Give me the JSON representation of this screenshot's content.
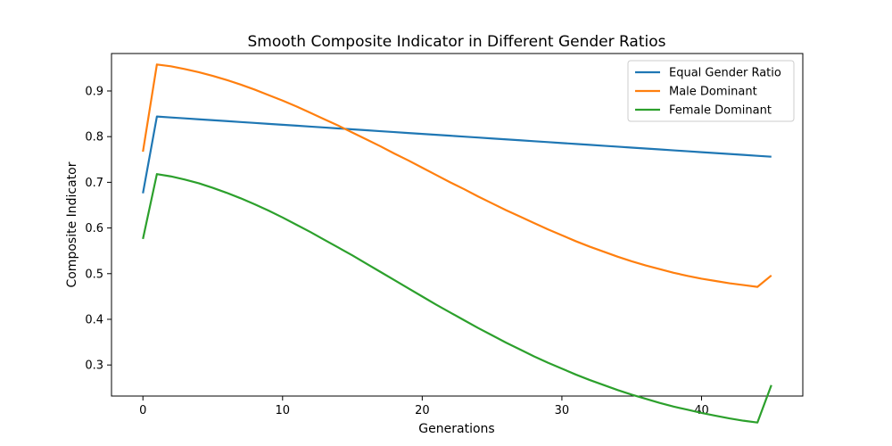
{
  "chart_data": {
    "type": "line",
    "title": "Smooth Composite Indicator in Different Gender Ratios",
    "xlabel": "Generations",
    "ylabel": "Composite Indicator",
    "xlim": [
      -2.25,
      47.25
    ],
    "ylim": [
      0.232,
      0.982
    ],
    "xticks": [
      0,
      10,
      20,
      30,
      40
    ],
    "yticks": [
      0.3,
      0.4,
      0.5,
      0.6,
      0.7,
      0.8,
      0.9
    ],
    "grid": false,
    "legend_position": "top-right",
    "x": [
      0,
      1,
      2,
      3,
      4,
      5,
      6,
      7,
      8,
      9,
      10,
      11,
      12,
      13,
      14,
      15,
      16,
      17,
      18,
      19,
      20,
      21,
      22,
      23,
      24,
      25,
      26,
      27,
      28,
      29,
      30,
      31,
      32,
      33,
      34,
      35,
      36,
      37,
      38,
      39,
      40,
      41,
      42,
      43,
      44,
      45
    ],
    "series": [
      {
        "name": "Equal Gender Ratio",
        "color": "#1f77b4",
        "values": [
          0.676,
          0.844,
          0.842,
          0.84,
          0.838,
          0.836,
          0.834,
          0.832,
          0.83,
          0.828,
          0.826,
          0.824,
          0.822,
          0.82,
          0.818,
          0.816,
          0.814,
          0.812,
          0.81,
          0.808,
          0.806,
          0.804,
          0.802,
          0.8,
          0.798,
          0.796,
          0.794,
          0.792,
          0.79,
          0.788,
          0.786,
          0.784,
          0.782,
          0.78,
          0.778,
          0.776,
          0.774,
          0.772,
          0.77,
          0.768,
          0.766,
          0.764,
          0.762,
          0.76,
          0.758,
          0.756
        ]
      },
      {
        "name": "Male Dominant",
        "color": "#ff7f0e",
        "values": [
          0.767,
          0.958,
          0.954,
          0.948,
          0.941,
          0.933,
          0.924,
          0.914,
          0.903,
          0.891,
          0.879,
          0.866,
          0.852,
          0.838,
          0.824,
          0.809,
          0.794,
          0.779,
          0.763,
          0.748,
          0.732,
          0.716,
          0.7,
          0.685,
          0.669,
          0.654,
          0.639,
          0.625,
          0.611,
          0.597,
          0.584,
          0.571,
          0.559,
          0.548,
          0.537,
          0.527,
          0.518,
          0.51,
          0.502,
          0.495,
          0.489,
          0.484,
          0.479,
          0.475,
          0.471,
          0.496
        ]
      },
      {
        "name": "Female Dominant",
        "color": "#2ca02c",
        "values": [
          0.576,
          0.718,
          0.713,
          0.706,
          0.698,
          0.688,
          0.677,
          0.665,
          0.652,
          0.638,
          0.623,
          0.607,
          0.591,
          0.574,
          0.557,
          0.54,
          0.522,
          0.504,
          0.486,
          0.468,
          0.45,
          0.432,
          0.415,
          0.398,
          0.381,
          0.365,
          0.349,
          0.334,
          0.319,
          0.305,
          0.292,
          0.279,
          0.267,
          0.256,
          0.245,
          0.235,
          0.226,
          0.217,
          0.209,
          0.202,
          0.195,
          0.189,
          0.183,
          0.178,
          0.174,
          0.256
        ]
      }
    ]
  }
}
